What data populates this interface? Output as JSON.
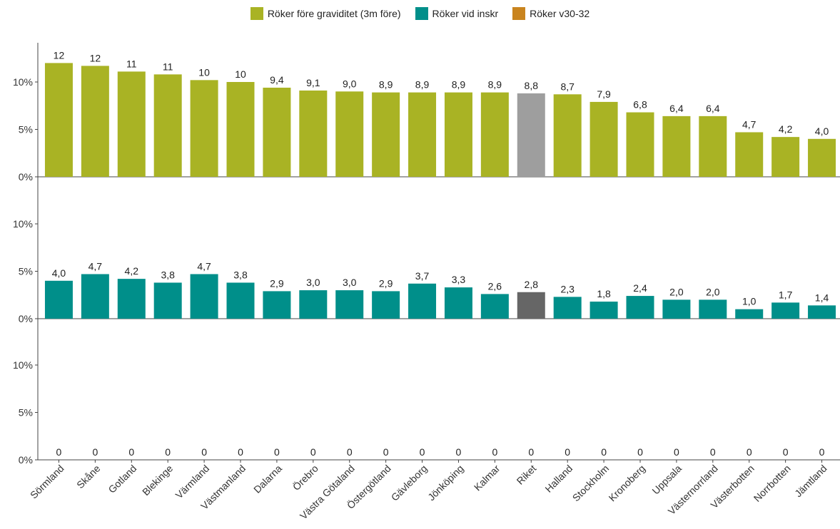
{
  "chart_data": {
    "type": "bar",
    "regions": [
      "Sörmland",
      "Skåne",
      "Gotland",
      "Blekinge",
      "Värmland",
      "Västmanland",
      "Dalarna",
      "Örebro",
      "Västra Götaland",
      "Östergötland",
      "Gävleborg",
      "Jönköping",
      "Kalmar",
      "Riket",
      "Halland",
      "Stockholm",
      "Kronoberg",
      "Uppsala",
      "Västernorrland",
      "Västerbotten",
      "Norrbotten",
      "Jämtland"
    ],
    "highlight_category": "Riket",
    "highlight_colors": {
      "panel1": "#9e9e9e",
      "panel2": "#666666",
      "panel3": "#666666"
    },
    "ytick_labels": [
      "0%",
      "5%",
      "10%"
    ],
    "ylim": [
      0,
      14
    ],
    "series": [
      {
        "name": "Röker före graviditet (3m före)",
        "color": "#a9b324",
        "values": [
          12.0,
          11.7,
          11.1,
          10.8,
          10.2,
          10.0,
          9.4,
          9.1,
          9.0,
          8.9,
          8.9,
          8.9,
          8.9,
          8.8,
          8.7,
          7.9,
          6.8,
          6.4,
          6.4,
          4.7,
          4.2,
          4.0
        ],
        "labels": [
          "12",
          "12",
          "11",
          "11",
          "10",
          "10",
          "9,4",
          "9,1",
          "9,0",
          "8,9",
          "8,9",
          "8,9",
          "8,9",
          "8,8",
          "8,7",
          "7,9",
          "6,8",
          "6,4",
          "6,4",
          "4,7",
          "4,2",
          "4,0"
        ]
      },
      {
        "name": "Röker vid inskr",
        "color": "#008f8a",
        "values": [
          4.0,
          4.7,
          4.2,
          3.8,
          4.7,
          3.8,
          2.9,
          3.0,
          3.0,
          2.9,
          3.7,
          3.3,
          2.6,
          2.8,
          2.3,
          1.8,
          2.4,
          2.0,
          2.0,
          1.0,
          1.7,
          1.4
        ],
        "labels": [
          "4,0",
          "4,7",
          "4,2",
          "3,8",
          "4,7",
          "3,8",
          "2,9",
          "3,0",
          "3,0",
          "2,9",
          "3,7",
          "3,3",
          "2,6",
          "2,8",
          "2,3",
          "1,8",
          "2,4",
          "2,0",
          "2,0",
          "1,0",
          "1,7",
          "1,4"
        ]
      },
      {
        "name": "Röker v30-32",
        "color": "#c9841e",
        "values": [
          0,
          0,
          0,
          0,
          0,
          0,
          0,
          0,
          0,
          0,
          0,
          0,
          0,
          0,
          0,
          0,
          0,
          0,
          0,
          0,
          0,
          0
        ],
        "labels": [
          "0",
          "0",
          "0",
          "0",
          "0",
          "0",
          "0",
          "0",
          "0",
          "0",
          "0",
          "0",
          "0",
          "0",
          "0",
          "0",
          "0",
          "0",
          "0",
          "0",
          "0",
          "0"
        ]
      }
    ]
  }
}
